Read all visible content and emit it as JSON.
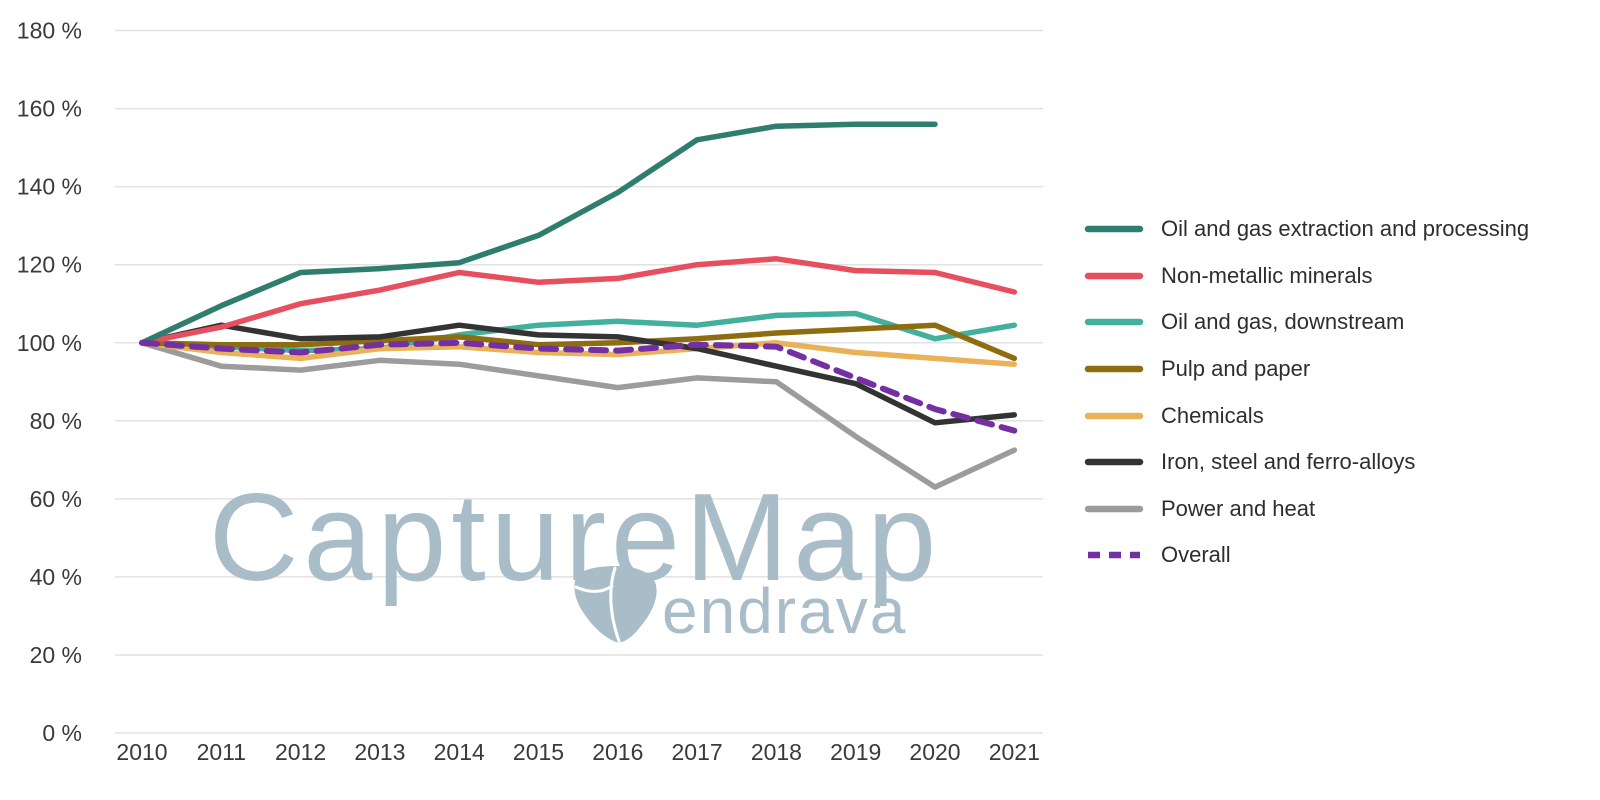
{
  "watermark": {
    "title": "CaptureMap",
    "brand": "endrava",
    "color": "#a9bdc8"
  },
  "axes": {
    "y_unit_suffix": " %",
    "text_color": "#3a3a3a",
    "grid_color": "#e2e2e2"
  },
  "chart_data": {
    "type": "line",
    "title": "",
    "xlabel": "",
    "ylabel": "",
    "categories": [
      "2010",
      "2011",
      "2012",
      "2013",
      "2014",
      "2015",
      "2016",
      "2017",
      "2018",
      "2019",
      "2020",
      "2021"
    ],
    "ylim": [
      0,
      180
    ],
    "y_tick_step": 20,
    "y_tick_labels": [
      "180 %",
      "160 %",
      "140 %",
      "120 %",
      "100 %",
      "80 %",
      "60 %",
      "40 %",
      "20 %",
      "0 %"
    ],
    "grid": "horizontal",
    "legend_position": "right",
    "series": [
      {
        "name": "Oil and gas extraction and processing",
        "color": "#2e7d6e",
        "dash": false,
        "values": [
          100,
          109.5,
          118,
          119,
          120.5,
          127.5,
          138.5,
          152,
          155.5,
          156,
          156,
          null
        ]
      },
      {
        "name": "Non-metallic minerals",
        "color": "#e84f5e",
        "dash": false,
        "values": [
          100,
          104,
          110,
          113.5,
          118,
          115.5,
          116.5,
          120,
          121.5,
          118.5,
          118,
          113
        ]
      },
      {
        "name": "Oil and gas, downstream",
        "color": "#43b09e",
        "dash": false,
        "values": [
          100,
          99,
          98,
          98.5,
          102,
          104.5,
          105.5,
          104.5,
          107,
          107.5,
          101,
          104.5
        ]
      },
      {
        "name": "Pulp and paper",
        "color": "#8e6c10",
        "dash": false,
        "values": [
          100,
          99.5,
          99.5,
          100.5,
          101.5,
          99.5,
          100,
          101,
          102.5,
          103.5,
          104.5,
          96
        ]
      },
      {
        "name": "Chemicals",
        "color": "#e9b258",
        "dash": false,
        "values": [
          100,
          97.5,
          96,
          98.5,
          99,
          97.5,
          97,
          98.5,
          100,
          97.5,
          96,
          94.5
        ]
      },
      {
        "name": "Iron, steel and ferro-alloys",
        "color": "#333333",
        "dash": false,
        "values": [
          100,
          104.5,
          101,
          101.5,
          104.5,
          102,
          101.5,
          98.5,
          94,
          89.5,
          79.5,
          81.5
        ]
      },
      {
        "name": "Power and heat",
        "color": "#9c9c9c",
        "dash": false,
        "values": [
          100,
          94,
          93,
          95.5,
          94.5,
          91.5,
          88.5,
          91,
          90,
          76,
          63,
          72.5
        ]
      },
      {
        "name": "Overall",
        "color": "#7430a3",
        "dash": true,
        "values": [
          100,
          98.5,
          97.5,
          99.5,
          100,
          98.5,
          98,
          99.5,
          99,
          91,
          83,
          77.5
        ]
      }
    ]
  }
}
